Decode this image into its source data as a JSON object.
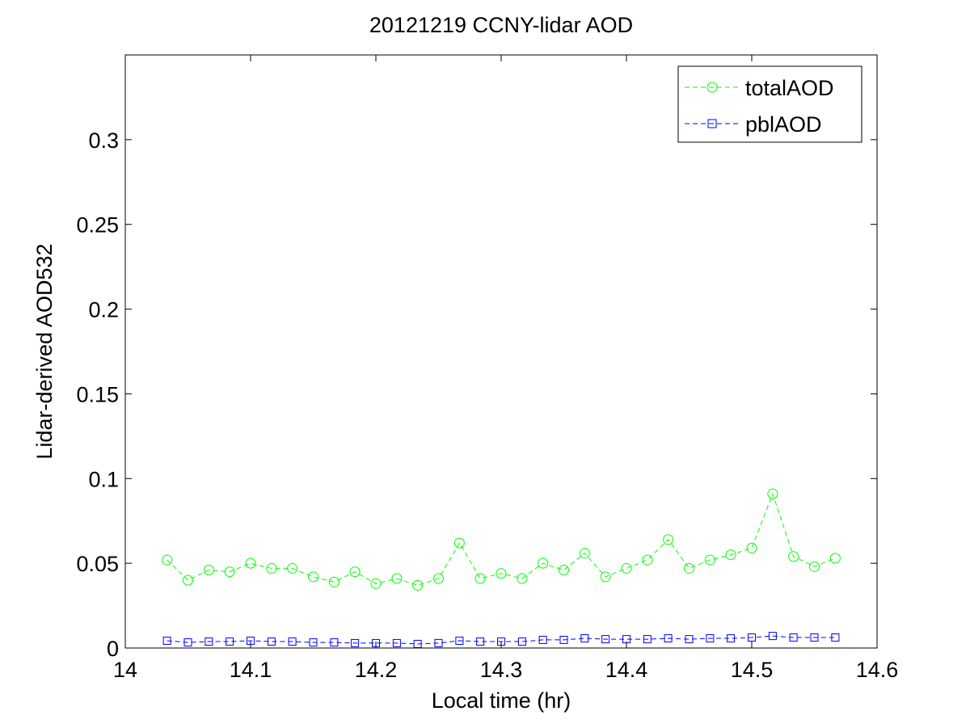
{
  "chart_data": {
    "type": "line",
    "title": "20121219 CCNY-lidar AOD",
    "xlabel": "Local time (hr)",
    "ylabel": "Lidar-derived AOD532",
    "xlim": [
      14,
      14.6
    ],
    "ylim": [
      0,
      0.35
    ],
    "xticks": [
      14,
      14.1,
      14.2,
      14.3,
      14.4,
      14.5,
      14.6
    ],
    "xtick_labels": [
      "14",
      "14.1",
      "14.2",
      "14.3",
      "14.4",
      "14.5",
      "14.6"
    ],
    "yticks": [
      0,
      0.05,
      0.1,
      0.15,
      0.2,
      0.25,
      0.3
    ],
    "ytick_labels": [
      "0",
      "0.05",
      "0.1",
      "0.15",
      "0.2",
      "0.25",
      "0.3"
    ],
    "grid": false,
    "legend_position": "top-right",
    "x": [
      14.0333,
      14.05,
      14.0667,
      14.0833,
      14.1,
      14.1167,
      14.1333,
      14.15,
      14.1667,
      14.1833,
      14.2,
      14.2167,
      14.2333,
      14.25,
      14.2667,
      14.2833,
      14.3,
      14.3167,
      14.3333,
      14.35,
      14.3667,
      14.3833,
      14.4,
      14.4167,
      14.4333,
      14.45,
      14.4667,
      14.4833,
      14.5,
      14.5167,
      14.5333,
      14.55,
      14.5667
    ],
    "series": [
      {
        "name": "totalAOD",
        "color": "#00ff00",
        "marker": "circle",
        "values": [
          0.052,
          0.04,
          0.046,
          0.045,
          0.05,
          0.047,
          0.047,
          0.042,
          0.039,
          0.045,
          0.038,
          0.041,
          0.037,
          0.041,
          0.062,
          0.041,
          0.044,
          0.041,
          0.05,
          0.046,
          0.056,
          0.042,
          0.047,
          0.052,
          0.064,
          0.047,
          0.052,
          0.055,
          0.059,
          0.091,
          0.054,
          0.048,
          0.053
        ]
      },
      {
        "name": "pblAOD",
        "color": "#0000ff",
        "marker": "square",
        "values": [
          0.0043,
          0.0033,
          0.0038,
          0.0038,
          0.0043,
          0.0038,
          0.0038,
          0.0033,
          0.0033,
          0.0029,
          0.0029,
          0.0029,
          0.0024,
          0.0029,
          0.0043,
          0.0038,
          0.0038,
          0.0038,
          0.0048,
          0.0048,
          0.0057,
          0.0052,
          0.0052,
          0.0052,
          0.0057,
          0.0052,
          0.0057,
          0.0057,
          0.0062,
          0.0071,
          0.0062,
          0.0062,
          0.0062
        ]
      }
    ]
  }
}
